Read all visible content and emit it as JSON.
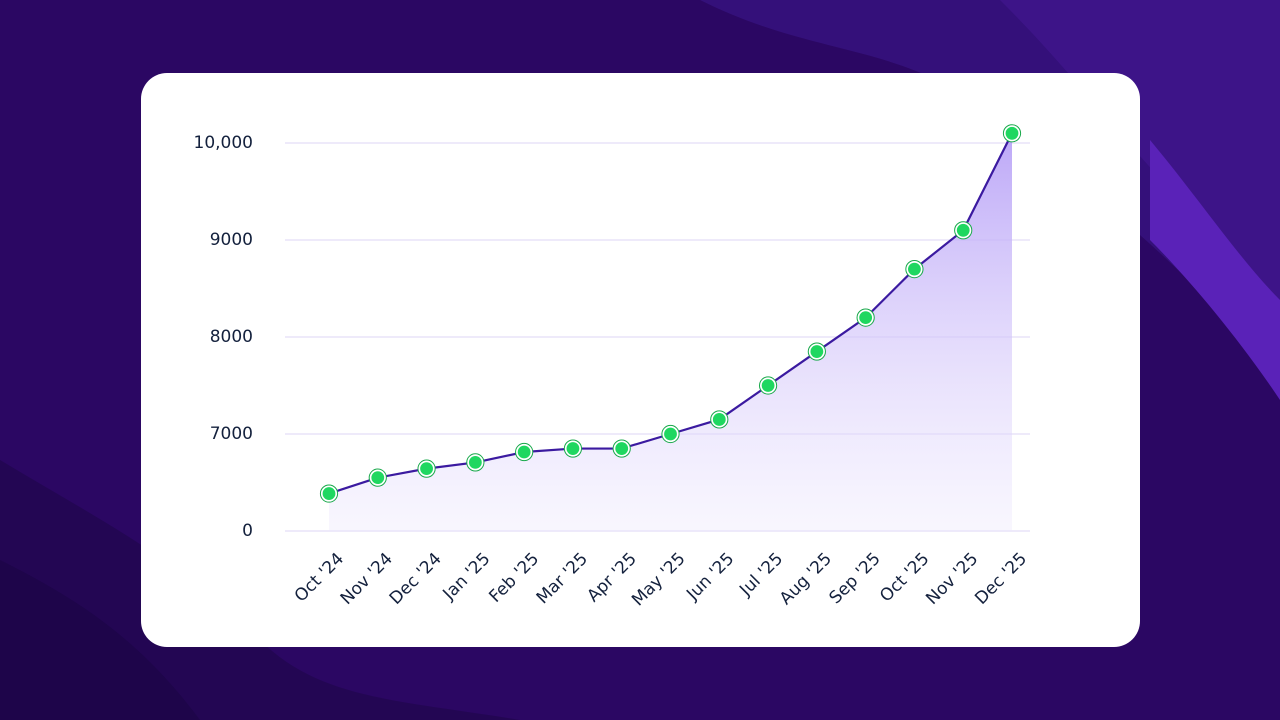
{
  "chart_data": {
    "type": "line",
    "categories": [
      "Oct '24",
      "Nov '24",
      "Dec '24",
      "Jan '25",
      "Feb '25",
      "Mar '25",
      "Apr '25",
      "May '25",
      "Jun '25",
      "Jul '25",
      "Aug '25",
      "Sep '25",
      "Oct '25",
      "Nov '25",
      "Dec '25"
    ],
    "series": [
      {
        "color": "#3b1aa0",
        "values": [
          2700,
          3850,
          4500,
          4950,
          5700,
          5950,
          5950,
          7000,
          7150,
          7500,
          7850,
          8200,
          8700,
          9100,
          10100
        ]
      }
    ],
    "ylim": [
      0,
      10000
    ],
    "yticks": [
      0,
      7000,
      8000,
      9000,
      {
        "value": 10000,
        "label": "10,000"
      }
    ],
    "grid": true
  }
}
